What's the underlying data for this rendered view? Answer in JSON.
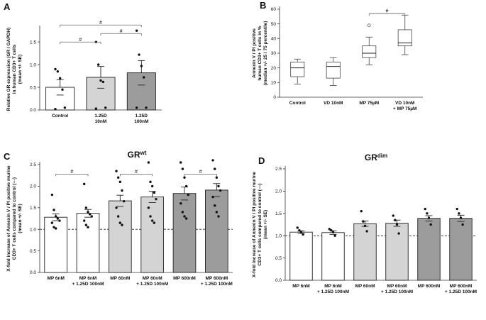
{
  "chart_data": [
    {
      "panel": "A",
      "type": "bar",
      "ylabel": [
        "Relative GR expression (GR / GAPDH)",
        "in human CD3+ T cells",
        "(mean +/- SE)"
      ],
      "ylim": [
        0,
        1.8
      ],
      "yticks": [
        "0.0",
        "0.5",
        "1.0",
        "1.5"
      ],
      "categories": [
        [
          "Control"
        ],
        [
          "1.25D",
          "10nM"
        ],
        [
          "1.25D",
          "100nM"
        ]
      ],
      "values": [
        0.5,
        0.72,
        0.82
      ],
      "errors": [
        0.17,
        0.24,
        0.27
      ],
      "colors": [
        "#ffffff",
        "#d4d4d4",
        "#9c9c9c"
      ],
      "points": [
        [
          0.9,
          0.85,
          0.7,
          0.45,
          0.05,
          0.02
        ],
        [
          1.5,
          1.0,
          0.65,
          0.62,
          0.05,
          0.03
        ],
        [
          1.75,
          1.22,
          0.97,
          0.72,
          0.05,
          0.05
        ]
      ],
      "significance": [
        {
          "from": 0,
          "to": 2,
          "label": "#"
        },
        {
          "from": 1,
          "to": 2,
          "label": "#"
        },
        {
          "from": 0,
          "to": 1,
          "label": "#"
        }
      ]
    },
    {
      "panel": "B",
      "type": "box",
      "ylabel": [
        "Annexin V / PI positive",
        "human CD3+ T cells in %",
        "(median +/- 25 / 75 percentile)"
      ],
      "ylim": [
        0,
        60
      ],
      "yticks": [
        "0",
        "10",
        "20",
        "30",
        "40",
        "50",
        "60"
      ],
      "categories": [
        [
          "Control"
        ],
        [
          "VD 10nM"
        ],
        [
          "MP 75µM"
        ],
        [
          "VD 10nM",
          "+ MP 75µM"
        ]
      ],
      "boxes": [
        {
          "min": 9,
          "q1": 14,
          "median": 20,
          "q3": 24,
          "max": 26
        },
        {
          "min": 8,
          "q1": 13,
          "median": 21,
          "q3": 24,
          "max": 27
        },
        {
          "min": 22,
          "q1": 27,
          "median": 30,
          "q3": 35,
          "max": 41,
          "outliers": [
            49
          ]
        },
        {
          "min": 29,
          "q1": 35,
          "median": 37,
          "q3": 46,
          "max": 56
        }
      ],
      "significance": [
        {
          "from": 2,
          "to": 3,
          "label": "#"
        }
      ]
    },
    {
      "panel": "C",
      "title": "GR",
      "title_sup": "wt",
      "type": "bar",
      "ylabel": [
        "X-fold increase of Annexin V / PI positive murine",
        "CD3+ T cells compared to control (---)",
        "(mean +/- SE)"
      ],
      "ylim": [
        0,
        2.5
      ],
      "yticks": [
        "0.0",
        "0.5",
        "1.0",
        "1.5",
        "2.0",
        "2.5"
      ],
      "reference_line": 1.0,
      "categories": [
        [
          "MP 6nM"
        ],
        [
          "MP 6nM",
          "+ 1.25D 100nM"
        ],
        [
          "MP 60nM"
        ],
        [
          "MP 60nM",
          "+ 1.25D 100nM"
        ],
        [
          "MP 600nM"
        ],
        [
          "MP 600nM",
          "+ 1.25D 100nM"
        ]
      ],
      "values": [
        1.28,
        1.37,
        1.66,
        1.75,
        1.83,
        1.91
      ],
      "errors": [
        0.08,
        0.09,
        0.13,
        0.13,
        0.15,
        0.15
      ],
      "colors": [
        "#ffffff",
        "#ffffff",
        "#d4d4d4",
        "#d4d4d4",
        "#9c9c9c",
        "#9c9c9c"
      ],
      "points": [
        [
          1.8,
          1.45,
          1.3,
          1.25,
          1.2,
          1.15,
          1.05,
          1.02
        ],
        [
          2.05,
          1.5,
          1.4,
          1.35,
          1.3,
          1.2,
          1.1,
          1.05
        ],
        [
          2.35,
          2.2,
          2.1,
          1.9,
          1.65,
          1.5,
          1.3,
          1.15,
          1.1
        ],
        [
          2.55,
          2.1,
          2.0,
          1.85,
          1.7,
          1.5,
          1.3,
          1.2,
          1.15
        ],
        [
          2.55,
          2.4,
          2.2,
          2.0,
          1.8,
          1.6,
          1.4,
          1.3,
          1.25
        ],
        [
          2.6,
          2.4,
          2.2,
          2.0,
          1.9,
          1.75,
          1.55,
          1.4,
          1.3
        ]
      ],
      "significance": [
        {
          "from": 0,
          "to": 1,
          "label": "#"
        },
        {
          "from": 2,
          "to": 3,
          "label": "#"
        },
        {
          "from": 4,
          "to": 5,
          "label": "#"
        }
      ]
    },
    {
      "panel": "D",
      "title": "GR",
      "title_sup": "dim",
      "type": "bar",
      "ylabel": [
        "X-fold increase of Annexin V / PI positive murine",
        "CD3+ T cells compared to control (---)",
        "(mean +/- SE)"
      ],
      "ylim": [
        0,
        2.5
      ],
      "yticks": [
        "0.0",
        "0.5",
        "1.0",
        "1.5",
        "2.0",
        "2.5"
      ],
      "reference_line": 1.0,
      "categories": [
        [
          "MP 6nM"
        ],
        [
          "MP 6nM",
          "+ 1.25D 100nM"
        ],
        [
          "MP 60nM"
        ],
        [
          "MP 60nM",
          "+ 1.25D 100nM"
        ],
        [
          "MP 600nM"
        ],
        [
          "MP 600nM",
          "+ 1.25D 100nM"
        ]
      ],
      "values": [
        1.08,
        1.07,
        1.27,
        1.28,
        1.39,
        1.39
      ],
      "errors": [
        0.03,
        0.04,
        0.06,
        0.07,
        0.06,
        0.07
      ],
      "colors": [
        "#ffffff",
        "#ffffff",
        "#d4d4d4",
        "#d4d4d4",
        "#9c9c9c",
        "#9c9c9c"
      ],
      "points": [
        [
          1.18,
          1.12,
          1.08,
          1.03
        ],
        [
          1.15,
          1.12,
          1.08,
          1.0
        ],
        [
          1.55,
          1.32,
          1.22,
          1.1
        ],
        [
          1.45,
          1.35,
          1.25,
          1.05
        ],
        [
          1.6,
          1.5,
          1.4,
          1.25
        ],
        [
          1.6,
          1.5,
          1.4,
          1.25
        ]
      ],
      "significance": []
    }
  ]
}
